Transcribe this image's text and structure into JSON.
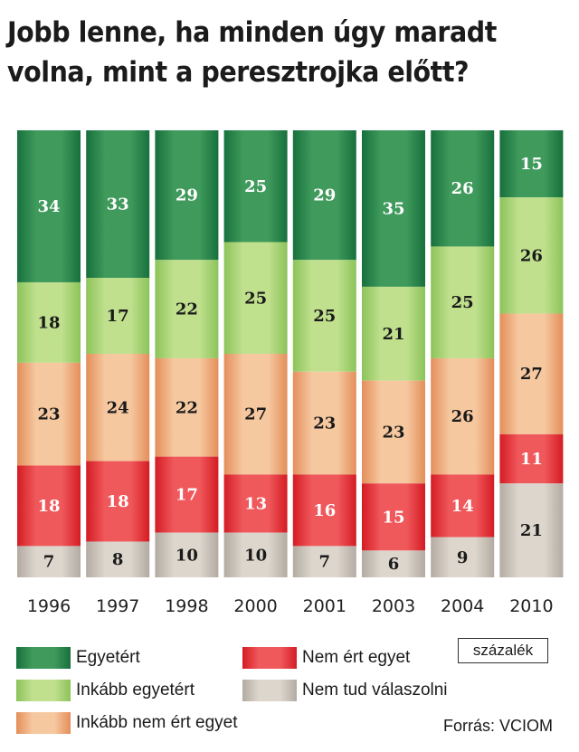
{
  "chart_data": {
    "type": "bar",
    "stacked": true,
    "title": "Jobb lenne, ha minden úgy maradt volna, mint a peresztrojka előtt?",
    "title_lines": [
      "Jobb lenne, ha minden úgy maradt",
      "volna, mint a peresztrojka előtt?"
    ],
    "categories": [
      "1996",
      "1997",
      "1998",
      "2000",
      "2001",
      "2003",
      "2004",
      "2010"
    ],
    "series": [
      {
        "name": "Egyetért",
        "color": "#17703c",
        "light": "#3f9a5c",
        "text_color": "#ffffff",
        "values": [
          34,
          33,
          29,
          25,
          29,
          35,
          26,
          15
        ]
      },
      {
        "name": "Inkább egyetért",
        "color": "#8cc35a",
        "light": "#c0e08e",
        "text_color": "#1a1a1a",
        "values": [
          18,
          17,
          22,
          25,
          25,
          21,
          25,
          26
        ]
      },
      {
        "name": "Inkább nem ért egyet",
        "color": "#e48e5a",
        "light": "#f6c8a0",
        "text_color": "#1a1a1a",
        "values": [
          23,
          24,
          22,
          27,
          23,
          23,
          26,
          27
        ]
      },
      {
        "name": "Nem ért egyet",
        "color": "#d41c24",
        "light": "#f0595c",
        "text_color": "#ffffff",
        "values": [
          18,
          18,
          17,
          13,
          16,
          15,
          14,
          11
        ]
      },
      {
        "name": "Nem tud válaszolni",
        "color": "#b3aba2",
        "light": "#ddd6cd",
        "text_color": "#1a1a1a",
        "values": [
          7,
          8,
          10,
          10,
          7,
          6,
          9,
          21
        ]
      }
    ],
    "unit_label": "százalék",
    "source": "Forrás: VCIOM",
    "legend_position": "bottom",
    "grid": false
  }
}
